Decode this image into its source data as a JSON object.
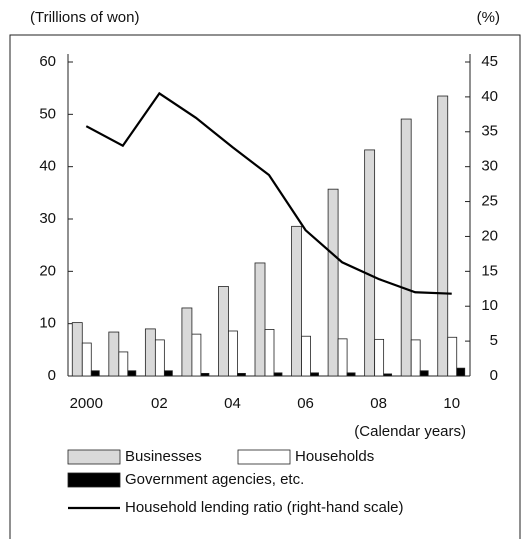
{
  "chart_data": {
    "type": "bar-line",
    "y_label": "(Trillions of won)",
    "y2_label": "(%)",
    "x_label": "(Calendar years)",
    "categories": [
      "2000",
      null,
      "02",
      null,
      "04",
      null,
      "06",
      null,
      "08",
      null,
      "10"
    ],
    "series": [
      {
        "name": "Businesses",
        "color": "#d9d9d9",
        "values": [
          10.2,
          8.4,
          9.0,
          13.0,
          17.1,
          21.6,
          28.6,
          35.7,
          43.2,
          49.1,
          53.5
        ]
      },
      {
        "name": "Households",
        "color": "#ffffff",
        "values": [
          6.3,
          4.6,
          6.9,
          8.0,
          8.6,
          8.9,
          7.6,
          7.1,
          7.0,
          6.9,
          7.4
        ]
      },
      {
        "name": "Government agencies, etc.",
        "color": "#000000",
        "values": [
          1.0,
          1.0,
          1.0,
          0.5,
          0.5,
          0.6,
          0.6,
          0.6,
          0.4,
          1.0,
          1.5
        ]
      },
      {
        "name": "Household lending ratio (right-hand scale)",
        "color": "#000000",
        "axis": "y2",
        "type": "line",
        "values": [
          35.8,
          33.0,
          40.5,
          37.0,
          32.8,
          28.8,
          20.9,
          16.3,
          13.9,
          12.0,
          11.8
        ]
      }
    ],
    "ylim": [
      0,
      60
    ],
    "yticks": [
      0,
      10,
      20,
      30,
      40,
      50,
      60
    ],
    "y2lim": [
      0,
      45
    ],
    "y2ticks": [
      0,
      5,
      10,
      15,
      20,
      25,
      30,
      35,
      40,
      45
    ]
  }
}
